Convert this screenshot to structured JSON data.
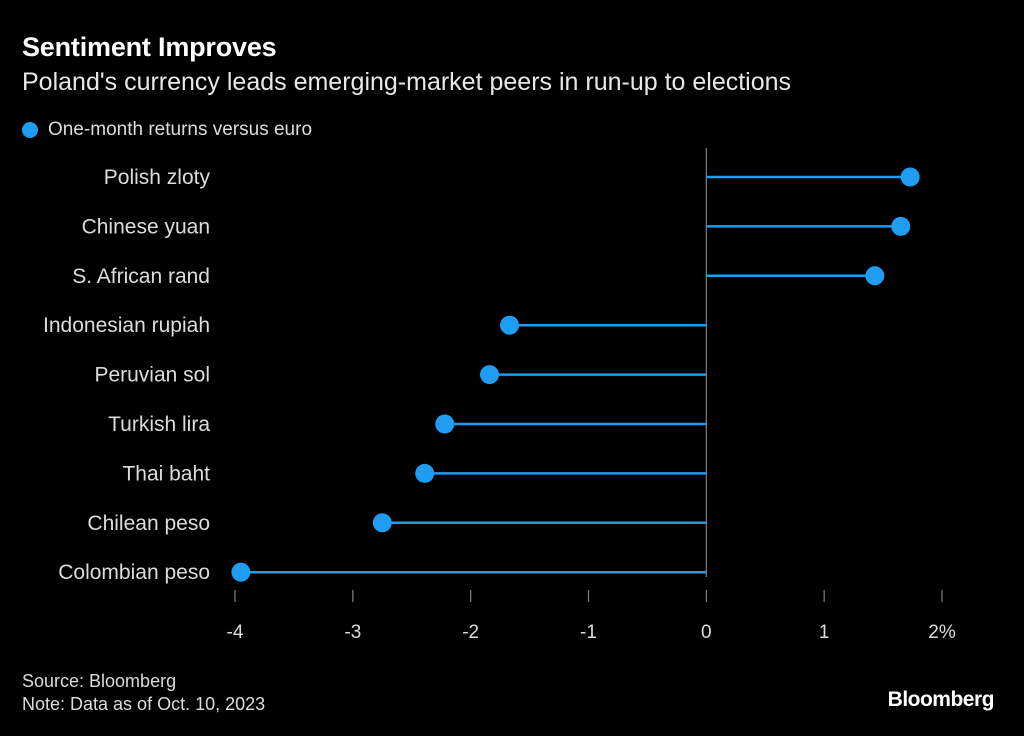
{
  "colors": {
    "series": "#1e9df2",
    "axis": "#808080",
    "text": "#dcdcdc",
    "background": "#000000"
  },
  "brand": "Bloomberg",
  "footer": {
    "source": "Source: Bloomberg",
    "note": "Note: Data as of Oct. 10, 2023"
  },
  "chart_data": {
    "type": "lollipop",
    "title": "Sentiment Improves",
    "subtitle": "Poland's currency leads emerging-market peers in run-up to elections",
    "legend": [
      "One-month returns versus euro"
    ],
    "legend_position": "top-left",
    "categories": [
      "Polish zloty",
      "Chinese yuan",
      "S. African rand",
      "Indonesian rupiah",
      "Peruvian sol",
      "Turkish lira",
      "Thai baht",
      "Chilean peso",
      "Colombian peso"
    ],
    "series": [
      {
        "name": "One-month returns versus euro",
        "values": [
          1.73,
          1.65,
          1.43,
          -1.67,
          -1.84,
          -2.22,
          -2.39,
          -2.75,
          -3.95
        ]
      }
    ],
    "xlim": [
      -4,
      2
    ],
    "xticks": [
      -4,
      -3,
      -2,
      -1,
      0,
      1,
      2
    ],
    "xtick_labels": [
      "-4",
      "-3",
      "-2",
      "-1",
      "0",
      "1",
      "2%"
    ],
    "xlabel": "",
    "ylabel": "",
    "grid": false
  }
}
